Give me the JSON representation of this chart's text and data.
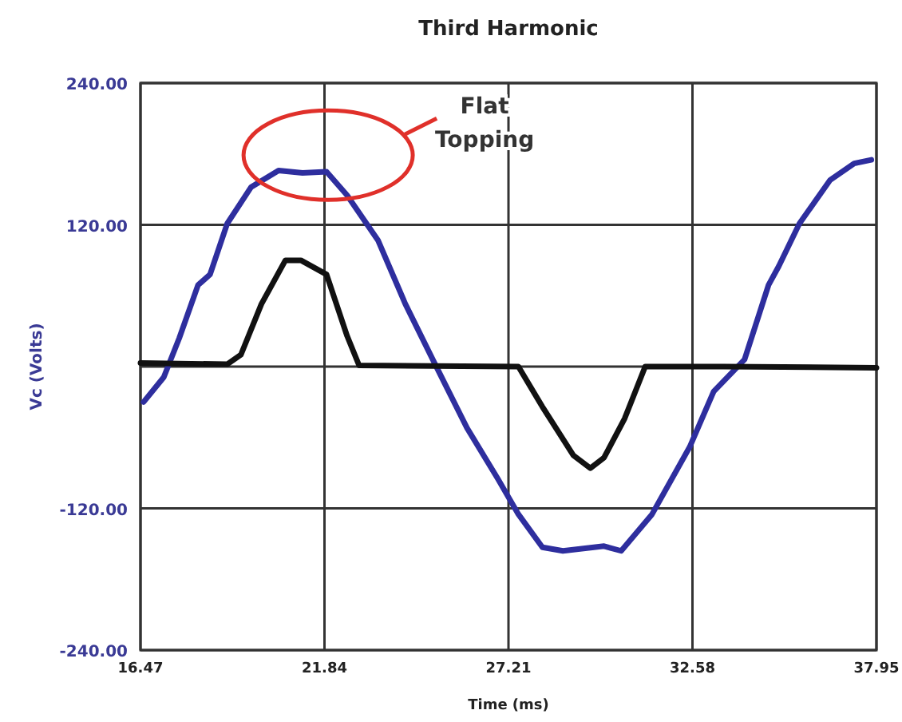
{
  "chart_data": {
    "type": "line",
    "title": "Third Harmonic",
    "xlabel": "Time (ms)",
    "ylabel": "Vc (Volts)",
    "xlim": [
      16.47,
      37.95
    ],
    "xticks": [
      16.47,
      21.84,
      27.21,
      32.58,
      37.95
    ],
    "ylim": [
      -240,
      240
    ],
    "yticks": [
      {
        "value": -240,
        "label": "-240.00"
      },
      {
        "value": -120,
        "label": "-120.00"
      },
      {
        "value": 0,
        "label": null
      },
      {
        "value": 120,
        "label": "120.00"
      },
      {
        "value": 240,
        "label": "240.00"
      }
    ],
    "grid": true,
    "marker": "none",
    "line_style": "solid",
    "annotations": [
      "Flat Topping"
    ],
    "series": [
      {
        "color": "#2e2e9e",
        "x": [
          16.56,
          17.15,
          17.6,
          18.15,
          18.5,
          19.0,
          19.7,
          20.5,
          21.2,
          21.9,
          22.5,
          23.4,
          24.2,
          25.0,
          26.0,
          26.9,
          27.5,
          28.2,
          28.8,
          30.0,
          30.5,
          31.4,
          32.5,
          33.2,
          34.1,
          34.8,
          35.1,
          35.7,
          36.6,
          37.3,
          37.8
        ],
        "values": [
          -30,
          -9,
          24,
          69,
          78,
          121,
          152,
          166,
          164,
          165,
          145,
          107,
          53,
          6,
          -52,
          -95,
          -125,
          -153,
          -156,
          -152,
          -156,
          -125,
          -68,
          -21,
          6,
          69,
          85,
          121,
          158,
          172,
          175
        ]
      },
      {
        "color": "#111111",
        "x": [
          16.47,
          19.0,
          19.4,
          20.0,
          20.7,
          21.15,
          21.9,
          22.5,
          22.85,
          27.5,
          28.2,
          29.1,
          29.6,
          30.0,
          30.6,
          31.2,
          33.5,
          37.95
        ],
        "values": [
          3,
          2,
          10,
          53,
          90,
          90,
          78,
          26,
          1,
          0,
          -34,
          -75,
          -86,
          -77,
          -44,
          0,
          0,
          -1
        ]
      }
    ]
  }
}
